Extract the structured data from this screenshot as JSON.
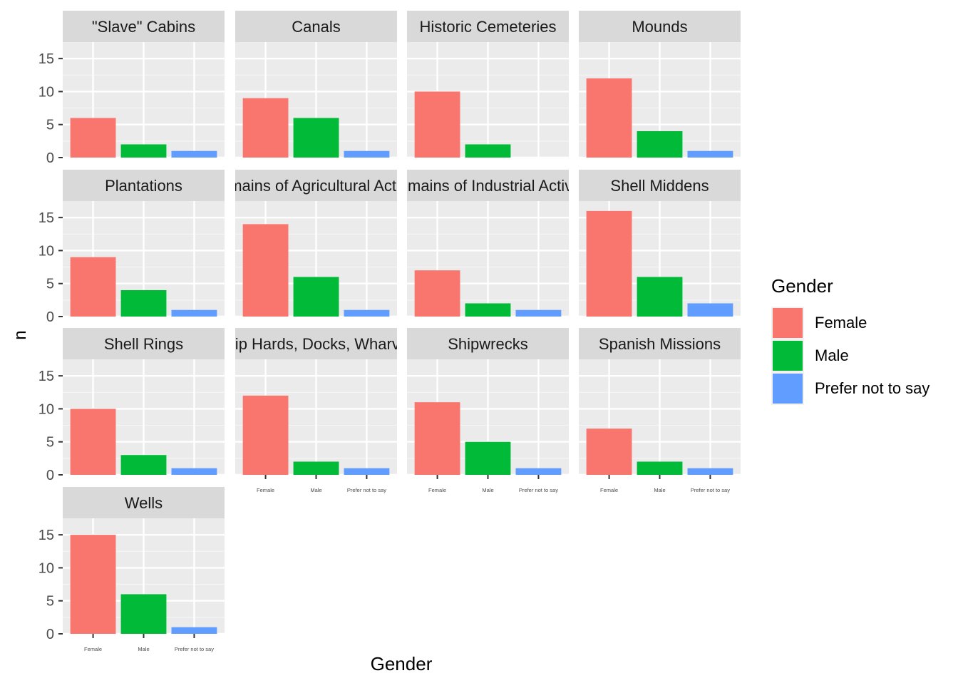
{
  "chart_data": {
    "type": "bar",
    "layout": "facet_wrap",
    "xlabel": "Gender",
    "ylabel": "n",
    "categories": [
      "Female",
      "Male",
      "Prefer not to say"
    ],
    "ylim": [
      0,
      17.5
    ],
    "yticks": [
      0,
      5,
      10,
      15
    ],
    "grid": true,
    "legend": {
      "title": "Gender",
      "position": "right",
      "entries": [
        {
          "label": "Female",
          "color": "#F8766D"
        },
        {
          "label": "Male",
          "color": "#00BA38"
        },
        {
          "label": "Prefer not to say",
          "color": "#619CFF"
        }
      ]
    },
    "colors": {
      "Female": "#F8766D",
      "Male": "#00BA38",
      "Prefer not to say": "#619CFF"
    },
    "panels": [
      {
        "title": "\"Slave\" Cabins",
        "values": [
          6,
          2,
          1
        ]
      },
      {
        "title": "Canals",
        "values": [
          9,
          6,
          1
        ]
      },
      {
        "title": "Historic Cemeteries",
        "values": [
          10,
          2,
          0
        ]
      },
      {
        "title": "Mounds",
        "values": [
          12,
          4,
          1
        ]
      },
      {
        "title": "Plantations",
        "values": [
          9,
          4,
          1
        ]
      },
      {
        "title": "Remains of Agricultural Activity",
        "values": [
          14,
          6,
          1
        ]
      },
      {
        "title": "Remains of Industrial Activity",
        "values": [
          7,
          2,
          1
        ]
      },
      {
        "title": "Shell Middens",
        "values": [
          16,
          6,
          2
        ]
      },
      {
        "title": "Shell Rings",
        "values": [
          10,
          3,
          1
        ]
      },
      {
        "title": "Ship Hards, Docks, Wharves",
        "values": [
          12,
          2,
          1
        ]
      },
      {
        "title": "Shipwrecks",
        "values": [
          11,
          5,
          1
        ]
      },
      {
        "title": "Spanish Missions",
        "values": [
          7,
          2,
          1
        ]
      },
      {
        "title": "Wells",
        "values": [
          15,
          6,
          1
        ]
      }
    ]
  }
}
